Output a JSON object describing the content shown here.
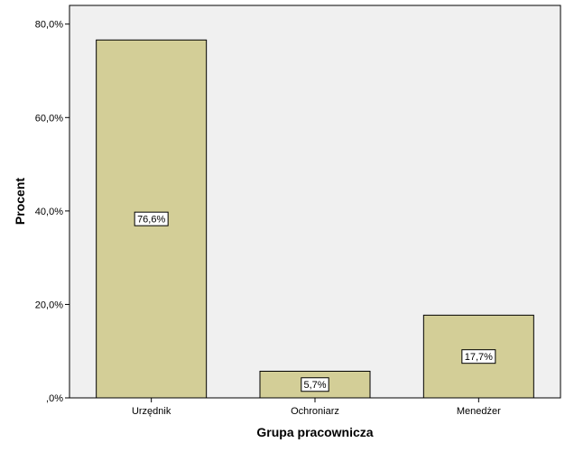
{
  "chart_data": {
    "type": "bar",
    "categories": [
      "Urzędnik",
      "Ochroniarz",
      "Menedżer"
    ],
    "values": [
      76.6,
      5.7,
      17.7
    ],
    "data_labels": [
      "76,6%",
      "5,7%",
      "17,7%"
    ],
    "xlabel": "Grupa pracownicza",
    "ylabel": "Procent",
    "ylim": [
      0,
      84
    ],
    "yticks": [
      0,
      20,
      40,
      60,
      80
    ],
    "ytick_labels": [
      ",0%",
      "20,0%",
      "40,0%",
      "60,0%",
      "80,0%"
    ],
    "grid": false,
    "legend": "none"
  },
  "colors": {
    "plot_background": "#f0f0f0",
    "bar_fill": "#d3ce97",
    "bar_stroke": "#000000",
    "label_box": "#ffffff"
  }
}
